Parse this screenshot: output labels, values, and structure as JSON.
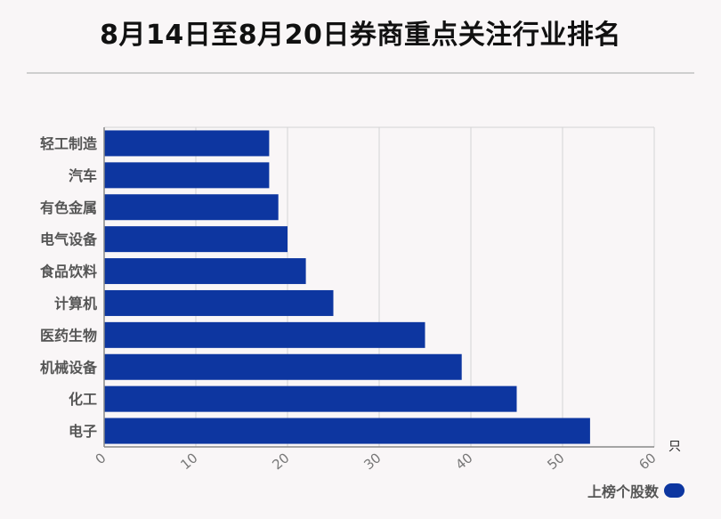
{
  "title": "8月14日至8月20日券商重点关注行业排名",
  "legend": {
    "label": "上榜个股数"
  },
  "colors": {
    "bar": "#0d36a0",
    "grid": "#d4d4d4",
    "axis": "#888888",
    "category_text": "#555555"
  },
  "chart_data": {
    "type": "bar",
    "orientation": "horizontal",
    "categories": [
      "轻工制造",
      "汽车",
      "有色金属",
      "电气设备",
      "食品饮料",
      "计算机",
      "医药生物",
      "机械设备",
      "化工",
      "电子"
    ],
    "series": [
      {
        "name": "上榜个股数",
        "values": [
          18,
          18,
          19,
          20,
          22,
          25,
          35,
          39,
          45,
          53
        ]
      }
    ],
    "xlim": [
      0,
      60
    ],
    "xticks": [
      "0",
      "10",
      "20",
      "30",
      "40",
      "50",
      "60"
    ],
    "x_unit": "只",
    "grid": true,
    "legend_position": "bottom-right"
  }
}
